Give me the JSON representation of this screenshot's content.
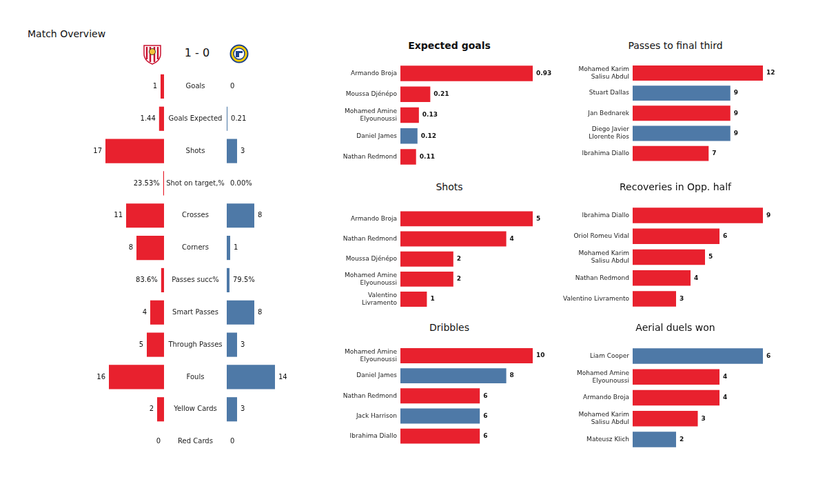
{
  "chart_data": [
    {
      "type": "bar",
      "title": "Match Overview",
      "subtitle": "1 - 0",
      "orientation": "horizontal",
      "categories": [
        "Goals",
        "Goals Expected",
        "Shots",
        "Shot on target,%",
        "Crosses",
        "Corners",
        "Passes succ%",
        "Smart Passes",
        "Through Passes",
        "Fouls",
        "Yellow Cards",
        "Red Cards"
      ],
      "series": [
        {
          "color": "#e8212e",
          "values": [
            1,
            1.44,
            17,
            0.2353,
            11,
            8,
            0.836,
            4,
            5,
            16,
            2,
            0
          ],
          "value_labels": [
            "1",
            "1.44",
            "17",
            "23.53%",
            "11",
            "8",
            "83.6%",
            "4",
            "5",
            "16",
            "2",
            "0"
          ]
        },
        {
          "color": "#4e79a7",
          "values": [
            0,
            0.21,
            3,
            0,
            8,
            1,
            0.795,
            8,
            3,
            14,
            3,
            0
          ],
          "value_labels": [
            "0",
            "0.21",
            "3",
            "0.00%",
            "8",
            "1",
            "79.5%",
            "8",
            "3",
            "14",
            "3",
            "0"
          ]
        }
      ],
      "xlim": [
        0,
        17
      ],
      "grid": false,
      "data_labels": true,
      "tick_labels": "y"
    },
    {
      "type": "bar",
      "title": "Expected goals",
      "orientation": "horizontal",
      "categories": [
        "Armando Broja",
        "Moussa Djénépo",
        "Mohamed Amine Elyounoussi",
        "Daniel James",
        "Nathan Redmond"
      ],
      "values": [
        0.93,
        0.21,
        0.13,
        0.12,
        0.11
      ],
      "colors": [
        "#e8212e",
        "#e8212e",
        "#e8212e",
        "#4e79a7",
        "#e8212e"
      ],
      "xlim": [
        0,
        0.93
      ],
      "grid": false,
      "data_labels": true,
      "tick_labels": "y"
    },
    {
      "type": "bar",
      "title": "Passes to final third",
      "orientation": "horizontal",
      "categories": [
        "Mohamed Karim Salisu Abdul",
        "Stuart Dallas",
        "Jan Bednarek",
        "Diego Javier Llorente Rios",
        "Ibrahima Diallo"
      ],
      "values": [
        12,
        9,
        9,
        9,
        7
      ],
      "colors": [
        "#e8212e",
        "#4e79a7",
        "#e8212e",
        "#4e79a7",
        "#e8212e"
      ],
      "xlim": [
        0,
        12
      ],
      "grid": false,
      "data_labels": true,
      "tick_labels": "y"
    },
    {
      "type": "bar",
      "title": "Shots",
      "orientation": "horizontal",
      "categories": [
        "Armando Broja",
        "Nathan Redmond",
        "Moussa Djénépo",
        "Mohamed Amine Elyounoussi",
        "Valentino Livramento"
      ],
      "values": [
        5,
        4,
        2,
        2,
        1
      ],
      "colors": [
        "#e8212e",
        "#e8212e",
        "#e8212e",
        "#e8212e",
        "#e8212e"
      ],
      "xlim": [
        0,
        5
      ],
      "grid": false,
      "data_labels": true,
      "tick_labels": "y"
    },
    {
      "type": "bar",
      "title": "Recoveries in Opp. half",
      "orientation": "horizontal",
      "categories": [
        "Ibrahima Diallo",
        "Oriol Romeu Vidal",
        "Mohamed Karim Salisu Abdul",
        "Nathan Redmond",
        "Valentino Livramento"
      ],
      "values": [
        9,
        6,
        5,
        4,
        3
      ],
      "colors": [
        "#e8212e",
        "#e8212e",
        "#e8212e",
        "#e8212e",
        "#e8212e"
      ],
      "xlim": [
        0,
        9
      ],
      "grid": false,
      "data_labels": true,
      "tick_labels": "y"
    },
    {
      "type": "bar",
      "title": "Dribbles",
      "orientation": "horizontal",
      "categories": [
        "Mohamed Amine Elyounoussi",
        "Daniel James",
        "Nathan Redmond",
        "Jack Harrison",
        "Ibrahima Diallo"
      ],
      "values": [
        10,
        8,
        6,
        6,
        6
      ],
      "colors": [
        "#e8212e",
        "#4e79a7",
        "#e8212e",
        "#4e79a7",
        "#e8212e"
      ],
      "xlim": [
        0,
        10
      ],
      "grid": false,
      "data_labels": true,
      "tick_labels": "y"
    },
    {
      "type": "bar",
      "title": "Aerial duels won",
      "orientation": "horizontal",
      "categories": [
        "Liam Cooper",
        "Mohamed Amine Elyounoussi",
        "Armando Broja",
        "Mohamed Karim Salisu Abdul",
        "Mateusz Klich"
      ],
      "values": [
        6,
        4,
        4,
        3,
        2
      ],
      "colors": [
        "#4e79a7",
        "#e8212e",
        "#e8212e",
        "#e8212e",
        "#4e79a7"
      ],
      "xlim": [
        0,
        6
      ],
      "grid": false,
      "data_labels": true,
      "tick_labels": "y"
    }
  ]
}
